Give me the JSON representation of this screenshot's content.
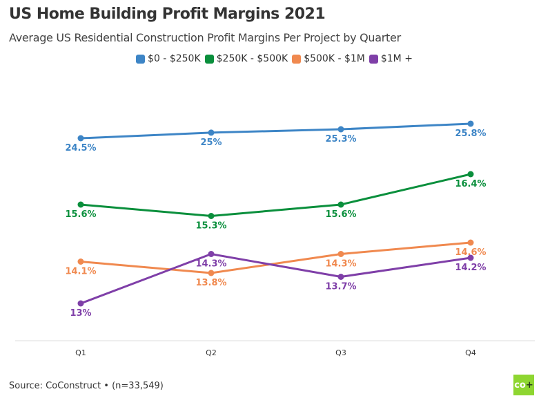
{
  "chart_data": {
    "type": "line",
    "title": "US Home Building Profit Margins 2021",
    "subtitle": "Average US Residential Construction Profit Margins Per Project by Quarter",
    "categories": [
      "Q1",
      "Q2",
      "Q3",
      "Q4"
    ],
    "series": [
      {
        "name": "$0 - $250K",
        "color": "#3d85c6",
        "values": [
          24.5,
          25,
          25.3,
          25.8
        ],
        "labels": [
          "24.5%",
          "25%",
          "25.3%",
          "25.8%"
        ]
      },
      {
        "name": "$250K - $500K",
        "color": "#0a8f3c",
        "values": [
          15.6,
          15.3,
          15.6,
          16.4
        ],
        "labels": [
          "15.6%",
          "15.3%",
          "15.6%",
          "16.4%"
        ]
      },
      {
        "name": "$500K - $1M",
        "color": "#f0894f",
        "values": [
          14.1,
          13.8,
          14.3,
          14.6
        ],
        "labels": [
          "14.1%",
          "13.8%",
          "14.3%",
          "14.6%"
        ]
      },
      {
        "name": "$1M +",
        "color": "#7f3fa8",
        "values": [
          13,
          14.3,
          13.7,
          14.2
        ],
        "labels": [
          "13%",
          "14.3%",
          "13.7%",
          "14.2%"
        ]
      }
    ],
    "legend_position": "top",
    "grid": false
  },
  "source": "Source: CoConstruct • (n=33,549)",
  "logo": {
    "text": "co",
    "plus": "+",
    "color": "#8ed631"
  }
}
